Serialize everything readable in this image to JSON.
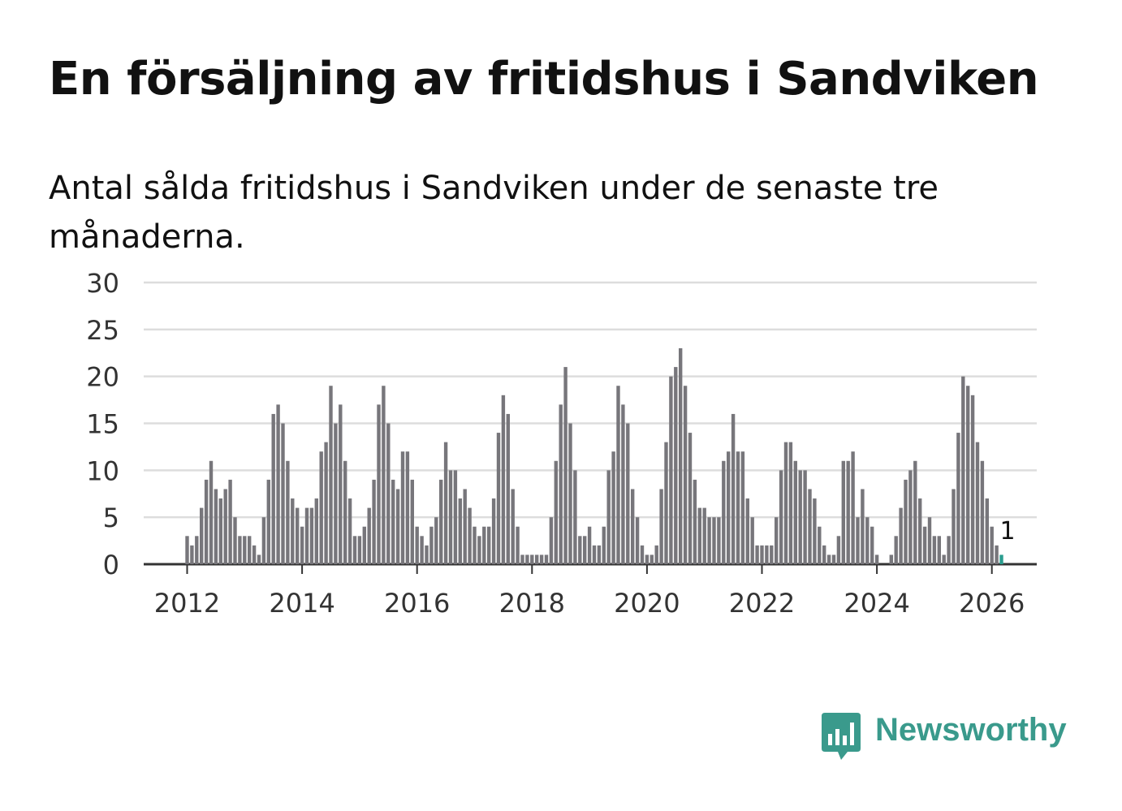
{
  "header": {
    "title": "En försäljning av fritidshus i Sandviken",
    "subtitle": "Antal sålda fritidshus i Sandviken under de senaste tre månaderna."
  },
  "brand": {
    "name": "Newsworthy",
    "icon": "newsworthy-logo-icon",
    "color": "#3a9a8c"
  },
  "colors": {
    "bar": "#77767b",
    "highlight": "#2a9d8f",
    "grid": "#dddddd",
    "axis": "#333333",
    "text": "#333333"
  },
  "chart_data": {
    "type": "bar",
    "title": "En försäljning av fritidshus i Sandviken",
    "xlabel": "",
    "ylabel": "",
    "ylim": [
      0,
      30
    ],
    "yticks": [
      0,
      5,
      10,
      15,
      20,
      25,
      30
    ],
    "xticks": [
      "2012",
      "2014",
      "2016",
      "2018",
      "2020",
      "2022",
      "2024",
      "2026"
    ],
    "x_start": "2012-01",
    "grid": true,
    "values": [
      3,
      2,
      3,
      6,
      9,
      11,
      8,
      7,
      8,
      9,
      5,
      3,
      3,
      3,
      2,
      1,
      5,
      9,
      16,
      17,
      15,
      11,
      7,
      6,
      4,
      6,
      6,
      7,
      12,
      13,
      19,
      15,
      17,
      11,
      7,
      3,
      3,
      4,
      6,
      9,
      17,
      19,
      15,
      9,
      8,
      12,
      12,
      9,
      4,
      3,
      2,
      4,
      5,
      9,
      13,
      10,
      10,
      7,
      8,
      6,
      4,
      3,
      4,
      4,
      7,
      14,
      18,
      16,
      8,
      4,
      1,
      1,
      1,
      1,
      1,
      1,
      5,
      11,
      17,
      21,
      15,
      10,
      3,
      3,
      4,
      2,
      2,
      4,
      10,
      12,
      19,
      17,
      15,
      8,
      5,
      2,
      1,
      1,
      2,
      8,
      13,
      20,
      21,
      23,
      19,
      14,
      9,
      6,
      6,
      5,
      5,
      5,
      11,
      12,
      16,
      12,
      12,
      7,
      5,
      2,
      2,
      2,
      2,
      5,
      10,
      13,
      13,
      11,
      10,
      10,
      8,
      7,
      4,
      2,
      1,
      1,
      3,
      11,
      11,
      12,
      5,
      8,
      5,
      4,
      1,
      0,
      0,
      1,
      3,
      6,
      9,
      10,
      11,
      7,
      4,
      5,
      3,
      3,
      1,
      3,
      8,
      14,
      20,
      19,
      18,
      13,
      11,
      7,
      4,
      2,
      1
    ],
    "highlight_last": true,
    "last_label": "1"
  }
}
